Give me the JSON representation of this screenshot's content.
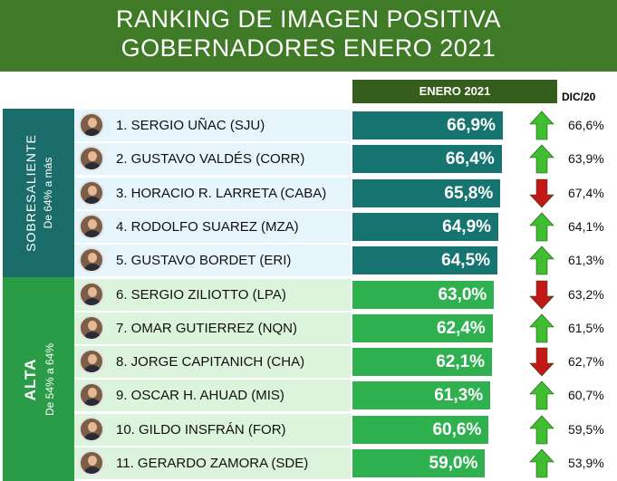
{
  "title_line1": "RANKING DE IMAGEN POSITIVA",
  "title_line2": "GOBERNADORES ENERO 2021",
  "colors": {
    "header_bg": "#3f7a26",
    "sobresaliente_bar": "#167570",
    "sobresaliente_row": "#e6f4fb",
    "alta_bar": "#2fb150",
    "alta_row": "#dcf3dc",
    "arrow_up": "#3fbf2f",
    "arrow_down": "#c41818"
  },
  "groups": [
    {
      "name": "SOBRESALIENTE",
      "range": "De 64% a más"
    },
    {
      "name": "ALTA",
      "range": "De 54% a 64%"
    }
  ],
  "chart_data": {
    "type": "bar",
    "orientation": "horizontal",
    "title": "RANKING DE IMAGEN POSITIVA GOBERNADORES ENERO 2021",
    "series": [
      {
        "name": "ENERO 2021",
        "values": [
          66.9,
          66.4,
          65.8,
          64.9,
          64.5,
          63.0,
          62.4,
          62.1,
          61.3,
          60.6,
          59.0
        ]
      },
      {
        "name": "DIC/20",
        "values": [
          66.6,
          63.9,
          67.4,
          64.1,
          61.3,
          63.2,
          61.5,
          62.7,
          60.7,
          59.5,
          53.9
        ]
      }
    ],
    "rows": [
      {
        "label": "1. SERGIO UÑAC (SJU)",
        "enero": 66.9,
        "enero_label": "66,9%",
        "dic": 66.6,
        "dic_label": "66,6%",
        "trend": "up",
        "group": 0
      },
      {
        "label": "2. GUSTAVO VALDÉS  (CORR)",
        "enero": 66.4,
        "enero_label": "66,4%",
        "dic": 63.9,
        "dic_label": "63,9%",
        "trend": "up",
        "group": 0
      },
      {
        "label": "3. HORACIO R. LARRETA (CABA)",
        "enero": 65.8,
        "enero_label": "65,8%",
        "dic": 67.4,
        "dic_label": "67,4%",
        "trend": "down",
        "group": 0
      },
      {
        "label": "4. RODOLFO SUAREZ (MZA)",
        "enero": 64.9,
        "enero_label": "64,9%",
        "dic": 64.1,
        "dic_label": "64,1%",
        "trend": "up",
        "group": 0
      },
      {
        "label": "5. GUSTAVO BORDET (ERI)",
        "enero": 64.5,
        "enero_label": "64,5%",
        "dic": 61.3,
        "dic_label": "61,3%",
        "trend": "up",
        "group": 0
      },
      {
        "label": "6. SERGIO ZILIOTTO (LPA)",
        "enero": 63.0,
        "enero_label": "63,0%",
        "dic": 63.2,
        "dic_label": "63,2%",
        "trend": "down",
        "group": 1
      },
      {
        "label": "7. OMAR GUTIERREZ (NQN)",
        "enero": 62.4,
        "enero_label": "62,4%",
        "dic": 61.5,
        "dic_label": "61,5%",
        "trend": "up",
        "group": 1
      },
      {
        "label": "8. JORGE CAPITANICH (CHA)",
        "enero": 62.1,
        "enero_label": "62,1%",
        "dic": 62.7,
        "dic_label": "62,7%",
        "trend": "down",
        "group": 1
      },
      {
        "label": "9. OSCAR H. AHUAD  (MIS)",
        "enero": 61.3,
        "enero_label": "61,3%",
        "dic": 60.7,
        "dic_label": "60,7%",
        "trend": "up",
        "group": 1
      },
      {
        "label": "10. GILDO INSFRÁN (FOR)",
        "enero": 60.6,
        "enero_label": "60,6%",
        "dic": 59.5,
        "dic_label": "59,5%",
        "trend": "up",
        "group": 1
      },
      {
        "label": "11. GERARDO ZAMORA (SDE)",
        "enero": 59.0,
        "enero_label": "59,0%",
        "dic": 53.9,
        "dic_label": "53,9%",
        "trend": "up",
        "group": 1
      }
    ]
  }
}
